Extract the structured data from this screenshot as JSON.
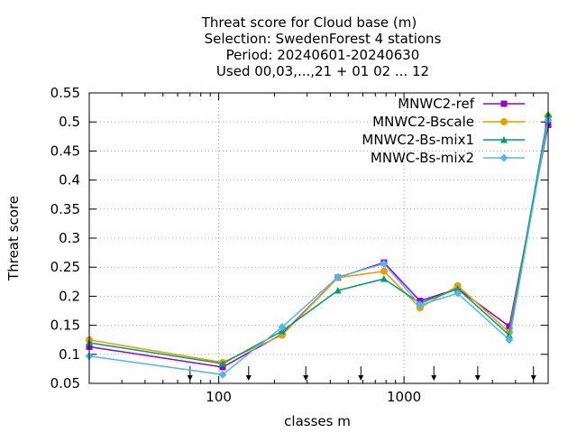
{
  "chart_data": {
    "type": "line",
    "title_lines": [
      "Threat score  for Cloud base (m)",
      "Selection: SwedenForest      4 stations",
      "Period: 20240601-20240630",
      "Used 00,03,...,21 + 01 02 ... 12"
    ],
    "xlabel": "classes m",
    "ylabel": "Threat score",
    "x_scale": "log",
    "xlim": [
      20,
      6000
    ],
    "ylim": [
      0.05,
      0.55
    ],
    "x_ticks": [
      100,
      1000
    ],
    "x_tick_labels": [
      "100",
      "1000"
    ],
    "y_ticks": [
      0.05,
      0.1,
      0.15,
      0.2,
      0.25,
      0.3,
      0.35,
      0.4,
      0.45,
      0.5,
      0.55
    ],
    "y_tick_labels": [
      "0.05",
      "0.1",
      "0.15",
      "0.2",
      "0.25",
      "0.3",
      "0.35",
      "0.4",
      "0.45",
      "0.5",
      "0.55"
    ],
    "grid": true,
    "legend_position": "top-right",
    "x": [
      20,
      105,
      220,
      440,
      780,
      1220,
      1950,
      3700,
      6000
    ],
    "class_markers": [
      70,
      145,
      295,
      585,
      1450,
      2500,
      5000
    ],
    "series": [
      {
        "name": "MNWC2-ref",
        "color": "#9400d3",
        "marker": "square",
        "values": [
          0.113,
          0.078,
          0.135,
          0.232,
          0.258,
          0.192,
          0.213,
          0.148,
          0.495
        ]
      },
      {
        "name": "MNWC2-Bscale",
        "color": "#e69f00",
        "marker": "circle",
        "values": [
          0.125,
          0.086,
          0.133,
          0.232,
          0.243,
          0.18,
          0.218,
          0.138,
          0.51
        ]
      },
      {
        "name": "MNWC2-Bs-mix1",
        "color": "#009e73",
        "marker": "triangle",
        "values": [
          0.12,
          0.084,
          0.14,
          0.21,
          0.23,
          0.188,
          0.213,
          0.133,
          0.513
        ]
      },
      {
        "name": "MNWC-Bs-mix2",
        "color": "#56b4e9",
        "marker": "diamond",
        "values": [
          0.097,
          0.065,
          0.147,
          0.233,
          0.256,
          0.185,
          0.205,
          0.125,
          0.503
        ]
      }
    ]
  }
}
